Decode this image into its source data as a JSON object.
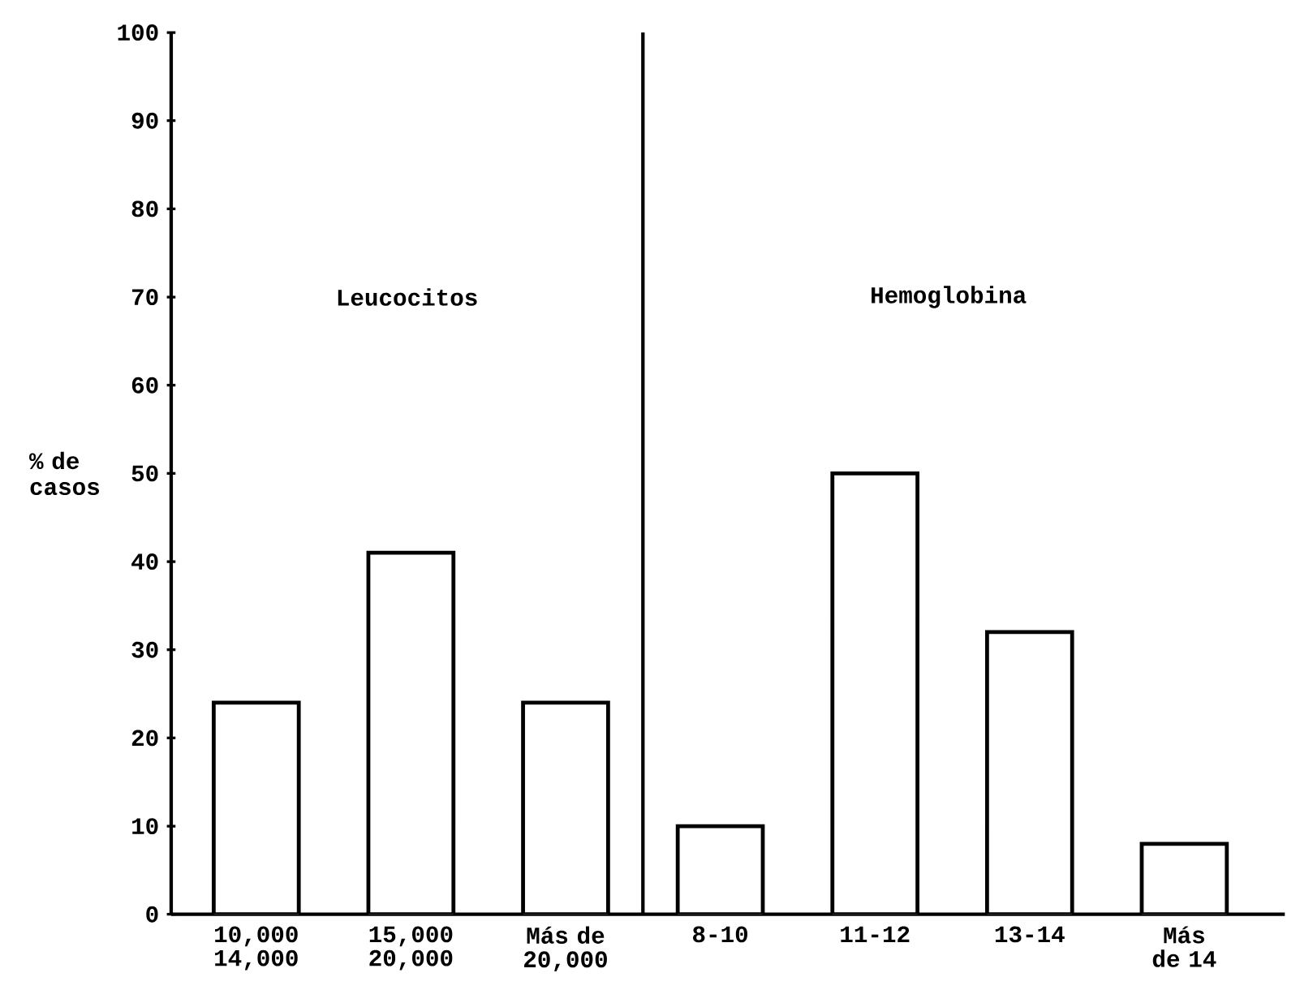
{
  "chart_data": {
    "type": "bar",
    "ylabel": "% de casos",
    "categories": [
      "10,000 14,000",
      "15,000 20,000",
      "Más de 20,000",
      "8-10",
      "11-12",
      "13-14",
      "Más de 14"
    ],
    "values": [
      24,
      41,
      24,
      10,
      50,
      32,
      8
    ],
    "ylim": [
      0,
      100
    ],
    "yticks": [
      0,
      10,
      20,
      30,
      40,
      50,
      60,
      70,
      80,
      90,
      100
    ],
    "annotations": [
      "Leucocitos",
      "Hemoglobina"
    ]
  }
}
